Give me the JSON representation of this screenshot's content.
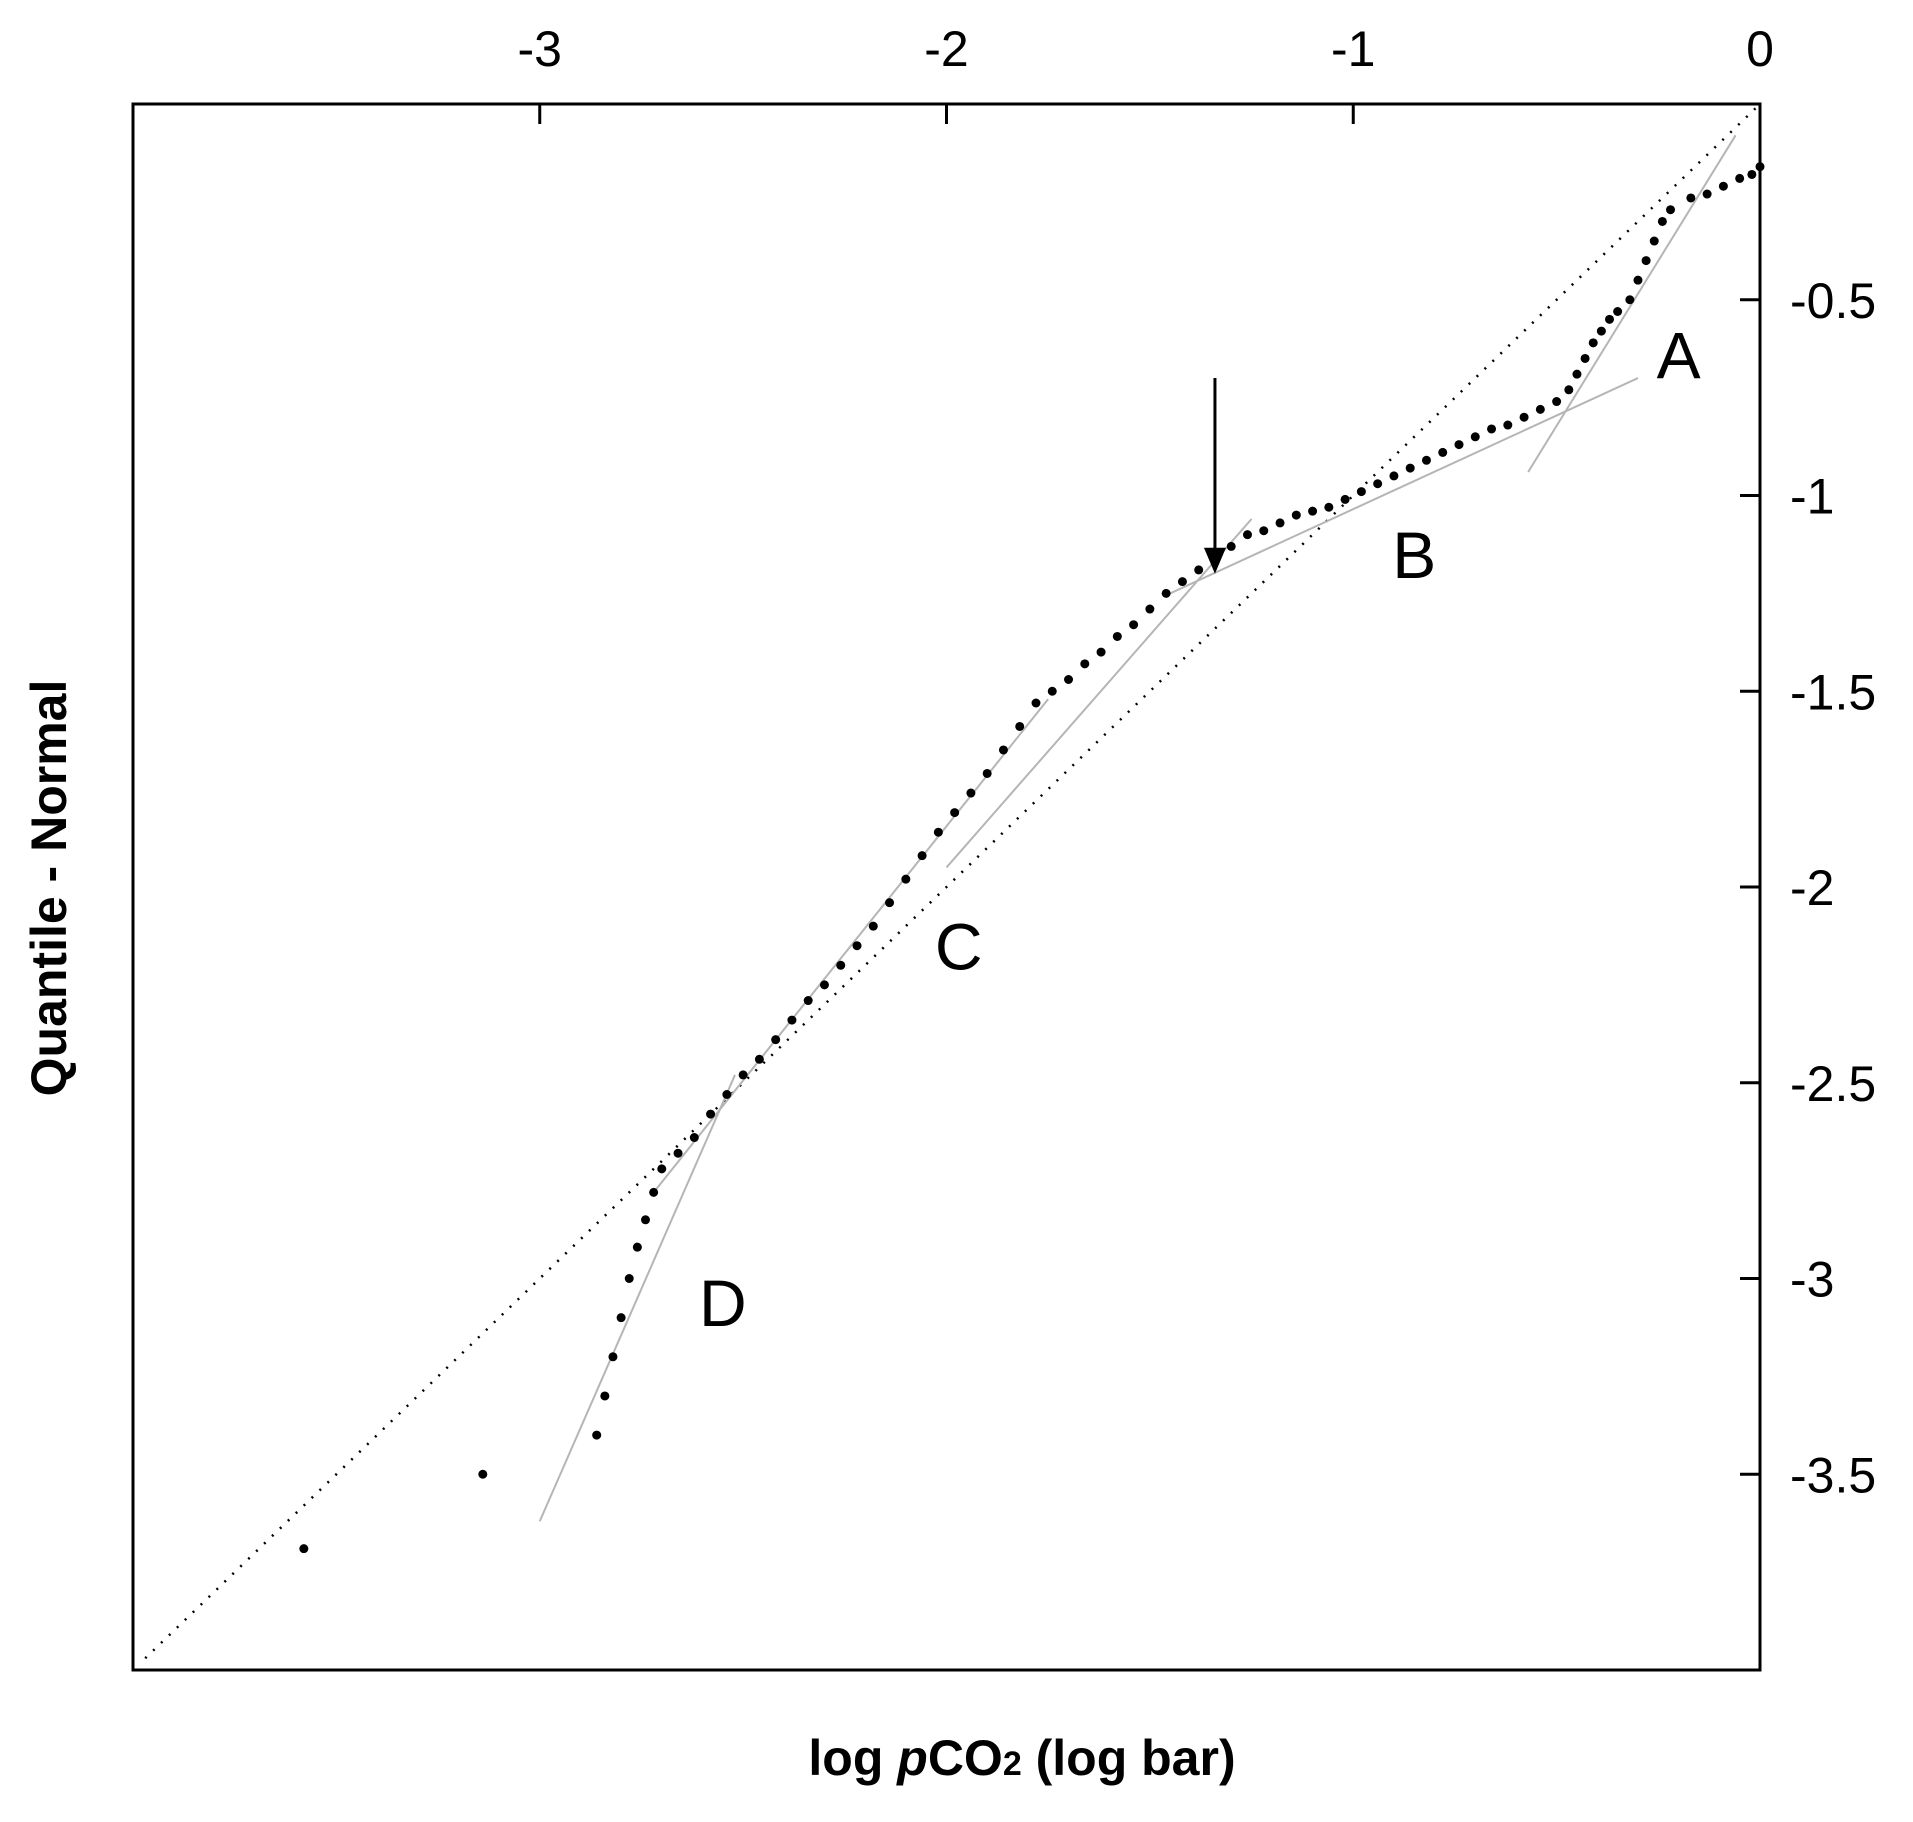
{
  "chart_data": {
    "type": "scatter",
    "xlabel_parts": {
      "pre": "log ",
      "italic": "p",
      "mid": "CO",
      "sub": "2",
      "post": " (log bar)"
    },
    "ylabel": "Quantile - Normal",
    "xlim": [
      -4,
      0
    ],
    "ylim": [
      -4,
      0
    ],
    "x_ticks": [
      -3,
      -2,
      -1,
      0
    ],
    "x_tick_labels": [
      "-3",
      "-2",
      "-1",
      "0"
    ],
    "y_ticks": [
      -0.5,
      -1,
      -1.5,
      -2,
      -2.5,
      -3,
      -3.5
    ],
    "y_tick_labels": [
      "-0.5",
      "-1",
      "-1.5",
      "-2",
      "-2.5",
      "-3",
      "-3.5"
    ],
    "x_axis_position": "top",
    "y_axis_position": "right",
    "grid": false,
    "reference_line": {
      "style": "dotted",
      "from": [
        -3.97,
        -3.97
      ],
      "to": [
        0,
        0
      ]
    },
    "series": [
      {
        "points": [
          [
            -3.58,
            -3.69
          ],
          [
            -3.14,
            -3.5
          ],
          [
            -2.86,
            -3.4
          ],
          [
            -2.84,
            -3.3
          ],
          [
            -2.82,
            -3.2
          ],
          [
            -2.8,
            -3.1
          ],
          [
            -2.78,
            -3.0
          ],
          [
            -2.76,
            -2.92
          ],
          [
            -2.74,
            -2.85
          ],
          [
            -2.72,
            -2.78
          ],
          [
            -2.7,
            -2.72
          ],
          [
            -2.66,
            -2.68
          ],
          [
            -2.62,
            -2.64
          ],
          [
            -2.58,
            -2.58
          ],
          [
            -2.54,
            -2.53
          ],
          [
            -2.5,
            -2.48
          ],
          [
            -2.46,
            -2.44
          ],
          [
            -2.42,
            -2.39
          ],
          [
            -2.38,
            -2.34
          ],
          [
            -2.34,
            -2.29
          ],
          [
            -2.3,
            -2.25
          ],
          [
            -2.26,
            -2.2
          ],
          [
            -2.22,
            -2.15
          ],
          [
            -2.18,
            -2.1
          ],
          [
            -2.14,
            -2.04
          ],
          [
            -2.1,
            -1.98
          ],
          [
            -2.06,
            -1.92
          ],
          [
            -2.02,
            -1.86
          ],
          [
            -1.98,
            -1.81
          ],
          [
            -1.94,
            -1.76
          ],
          [
            -1.9,
            -1.71
          ],
          [
            -1.86,
            -1.65
          ],
          [
            -1.82,
            -1.59
          ],
          [
            -1.78,
            -1.53
          ],
          [
            -1.74,
            -1.5
          ],
          [
            -1.7,
            -1.47
          ],
          [
            -1.66,
            -1.43
          ],
          [
            -1.62,
            -1.4
          ],
          [
            -1.58,
            -1.36
          ],
          [
            -1.54,
            -1.33
          ],
          [
            -1.5,
            -1.29
          ],
          [
            -1.46,
            -1.25
          ],
          [
            -1.42,
            -1.22
          ],
          [
            -1.38,
            -1.19
          ],
          [
            -1.34,
            -1.16
          ],
          [
            -1.3,
            -1.13
          ],
          [
            -1.26,
            -1.1
          ],
          [
            -1.22,
            -1.09
          ],
          [
            -1.18,
            -1.07
          ],
          [
            -1.14,
            -1.05
          ],
          [
            -1.1,
            -1.04
          ],
          [
            -1.06,
            -1.03
          ],
          [
            -1.02,
            -1.01
          ],
          [
            -0.98,
            -0.99
          ],
          [
            -0.94,
            -0.97
          ],
          [
            -0.9,
            -0.95
          ],
          [
            -0.86,
            -0.93
          ],
          [
            -0.82,
            -0.91
          ],
          [
            -0.78,
            -0.89
          ],
          [
            -0.74,
            -0.87
          ],
          [
            -0.7,
            -0.85
          ],
          [
            -0.66,
            -0.83
          ],
          [
            -0.62,
            -0.82
          ],
          [
            -0.58,
            -0.8
          ],
          [
            -0.54,
            -0.78
          ],
          [
            -0.5,
            -0.76
          ],
          [
            -0.47,
            -0.73
          ],
          [
            -0.45,
            -0.69
          ],
          [
            -0.43,
            -0.65
          ],
          [
            -0.41,
            -0.61
          ],
          [
            -0.39,
            -0.58
          ],
          [
            -0.37,
            -0.55
          ],
          [
            -0.35,
            -0.53
          ],
          [
            -0.32,
            -0.5
          ],
          [
            -0.3,
            -0.45
          ],
          [
            -0.28,
            -0.4
          ],
          [
            -0.26,
            -0.35
          ],
          [
            -0.24,
            -0.3
          ],
          [
            -0.22,
            -0.27
          ],
          [
            -0.17,
            -0.24
          ],
          [
            -0.13,
            -0.23
          ],
          [
            -0.09,
            -0.21
          ],
          [
            -0.05,
            -0.19
          ],
          [
            -0.02,
            -0.18
          ],
          [
            0.0,
            -0.16
          ]
        ]
      }
    ],
    "segment_fits": [
      {
        "from": [
          -3.0,
          -3.62
        ],
        "to": [
          -2.52,
          -2.48
        ]
      },
      {
        "from": [
          -2.72,
          -2.78
        ],
        "to": [
          -1.75,
          -1.52
        ]
      },
      {
        "from": [
          -2.0,
          -1.95
        ],
        "to": [
          -1.25,
          -1.06
        ]
      },
      {
        "from": [
          -1.45,
          -1.25
        ],
        "to": [
          -0.3,
          -0.7
        ]
      },
      {
        "from": [
          -0.57,
          -0.94
        ],
        "to": [
          -0.06,
          -0.08
        ]
      }
    ],
    "annotations": [
      {
        "text": "A",
        "x": -0.2,
        "y": -0.64
      },
      {
        "text": "B",
        "x": -0.85,
        "y": -1.15
      },
      {
        "text": "C",
        "x": -1.97,
        "y": -2.15
      },
      {
        "text": "D",
        "x": -2.55,
        "y": -3.06
      }
    ],
    "arrow": {
      "from": [
        -1.34,
        -0.7
      ],
      "to": [
        -1.34,
        -1.2
      ]
    }
  }
}
